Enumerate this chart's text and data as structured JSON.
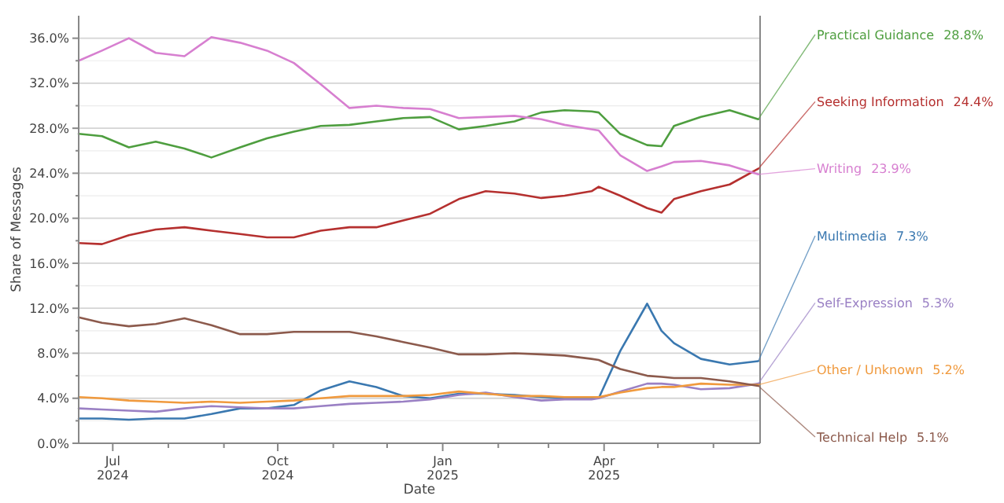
{
  "chart_data": {
    "type": "line",
    "xlabel": "Date",
    "ylabel": "Share of Messages",
    "x": [
      "2024-06-12",
      "2024-06-25",
      "2024-07-10",
      "2024-07-25",
      "2024-08-10",
      "2024-08-25",
      "2024-09-10",
      "2024-09-25",
      "2024-10-10",
      "2024-10-25",
      "2024-11-10",
      "2024-11-25",
      "2024-12-10",
      "2024-12-25",
      "2025-01-10",
      "2025-01-25",
      "2025-02-10",
      "2025-02-25",
      "2025-03-10",
      "2025-03-25",
      "2025-03-29",
      "2025-04-10",
      "2025-04-25",
      "2025-05-03",
      "2025-05-10",
      "2025-05-25",
      "2025-06-10",
      "2025-06-26"
    ],
    "series": [
      {
        "name": "Practical Guidance",
        "color": "#4e9e3f",
        "values": [
          27.5,
          27.3,
          26.3,
          26.8,
          26.2,
          25.4,
          26.3,
          27.1,
          27.7,
          28.2,
          28.3,
          28.6,
          28.9,
          29.0,
          27.9,
          28.2,
          28.6,
          29.4,
          29.6,
          29.5,
          29.4,
          27.5,
          26.5,
          26.4,
          28.2,
          29.0,
          29.6,
          28.8
        ]
      },
      {
        "name": "Seeking Information",
        "color": "#b5302f",
        "values": [
          17.8,
          17.7,
          18.5,
          19.0,
          19.2,
          18.9,
          18.6,
          18.3,
          18.3,
          18.9,
          19.2,
          19.2,
          19.8,
          20.4,
          21.7,
          22.4,
          22.2,
          21.8,
          22.0,
          22.4,
          22.8,
          22.0,
          20.9,
          20.5,
          21.7,
          22.4,
          23.0,
          24.4
        ]
      },
      {
        "name": "Writing",
        "color": "#d77fd0",
        "values": [
          34.0,
          34.9,
          36.0,
          34.7,
          34.4,
          36.1,
          35.6,
          34.9,
          33.8,
          31.9,
          29.8,
          30.0,
          29.8,
          29.7,
          28.9,
          29.0,
          29.1,
          28.8,
          28.3,
          27.9,
          27.8,
          25.6,
          24.2,
          24.6,
          25.0,
          25.1,
          24.7,
          23.9
        ]
      },
      {
        "name": "Multimedia",
        "color": "#3a78b0",
        "values": [
          2.2,
          2.2,
          2.1,
          2.2,
          2.2,
          2.6,
          3.1,
          3.1,
          3.4,
          4.7,
          5.5,
          5.0,
          4.2,
          4.0,
          4.4,
          4.4,
          4.3,
          4.1,
          4.0,
          4.0,
          4.0,
          8.2,
          12.4,
          10.0,
          8.9,
          7.5,
          7.0,
          7.3
        ]
      },
      {
        "name": "Self-Expression",
        "color": "#9a80c4",
        "values": [
          3.1,
          3.0,
          2.9,
          2.8,
          3.1,
          3.3,
          3.2,
          3.1,
          3.1,
          3.3,
          3.5,
          3.6,
          3.7,
          3.9,
          4.3,
          4.5,
          4.1,
          3.8,
          3.9,
          3.9,
          4.0,
          4.6,
          5.3,
          5.3,
          5.2,
          4.8,
          4.9,
          5.3
        ]
      },
      {
        "name": "Other / Unknown",
        "color": "#f09a3e",
        "values": [
          4.1,
          4.0,
          3.8,
          3.7,
          3.6,
          3.7,
          3.6,
          3.7,
          3.8,
          4.0,
          4.2,
          4.2,
          4.2,
          4.3,
          4.6,
          4.4,
          4.2,
          4.2,
          4.1,
          4.1,
          4.1,
          4.5,
          4.9,
          5.0,
          5.0,
          5.3,
          5.2,
          5.2
        ]
      },
      {
        "name": "Technical Help",
        "color": "#8c5a4c",
        "values": [
          11.2,
          10.7,
          10.4,
          10.6,
          11.1,
          10.5,
          9.7,
          9.7,
          9.9,
          9.9,
          9.9,
          9.5,
          9.0,
          8.5,
          7.9,
          7.9,
          8.0,
          7.9,
          7.8,
          7.5,
          7.4,
          6.6,
          6.0,
          5.9,
          5.8,
          5.8,
          5.5,
          5.1
        ]
      }
    ],
    "xlim": [
      "2024-06-12",
      "2025-06-27"
    ],
    "xticks": [
      {
        "value": "2024-07-01",
        "label": "Jul\n2024"
      },
      {
        "value": "2024-08-01",
        "label": null
      },
      {
        "value": "2024-09-01",
        "label": null
      },
      {
        "value": "2024-10-01",
        "label": "Oct\n2024"
      },
      {
        "value": "2024-11-01",
        "label": null
      },
      {
        "value": "2024-12-01",
        "label": null
      },
      {
        "value": "2025-01-01",
        "label": "Jan\n2025"
      },
      {
        "value": "2025-02-01",
        "label": null
      },
      {
        "value": "2025-03-01",
        "label": null
      },
      {
        "value": "2025-04-01",
        "label": "Apr\n2025"
      },
      {
        "value": "2025-05-01",
        "label": null
      },
      {
        "value": "2025-06-01",
        "label": null
      }
    ],
    "ylim": [
      0,
      38
    ],
    "yticks": [
      {
        "value": 0,
        "label": "0.0%"
      },
      {
        "value": 2,
        "label": null
      },
      {
        "value": 4,
        "label": "4.0%"
      },
      {
        "value": 6,
        "label": null
      },
      {
        "value": 8,
        "label": "8.0%"
      },
      {
        "value": 10,
        "label": null
      },
      {
        "value": 12,
        "label": "12.0%"
      },
      {
        "value": 14,
        "label": null
      },
      {
        "value": 16,
        "label": "16.0%"
      },
      {
        "value": 18,
        "label": null
      },
      {
        "value": 20,
        "label": "20.0%"
      },
      {
        "value": 22,
        "label": null
      },
      {
        "value": 24,
        "label": "24.0%"
      },
      {
        "value": 26,
        "label": null
      },
      {
        "value": 28,
        "label": "28.0%"
      },
      {
        "value": 30,
        "label": null
      },
      {
        "value": 32,
        "label": "32.0%"
      },
      {
        "value": 34,
        "label": null
      },
      {
        "value": 36,
        "label": "36.0%"
      }
    ],
    "annotations": [
      "28.8%",
      "24.4%",
      "23.9%",
      "7.3%",
      "5.3%",
      "5.2%",
      "5.1%"
    ],
    "grid": "y",
    "legend": "right",
    "line_style": "solid",
    "marker": "none"
  }
}
